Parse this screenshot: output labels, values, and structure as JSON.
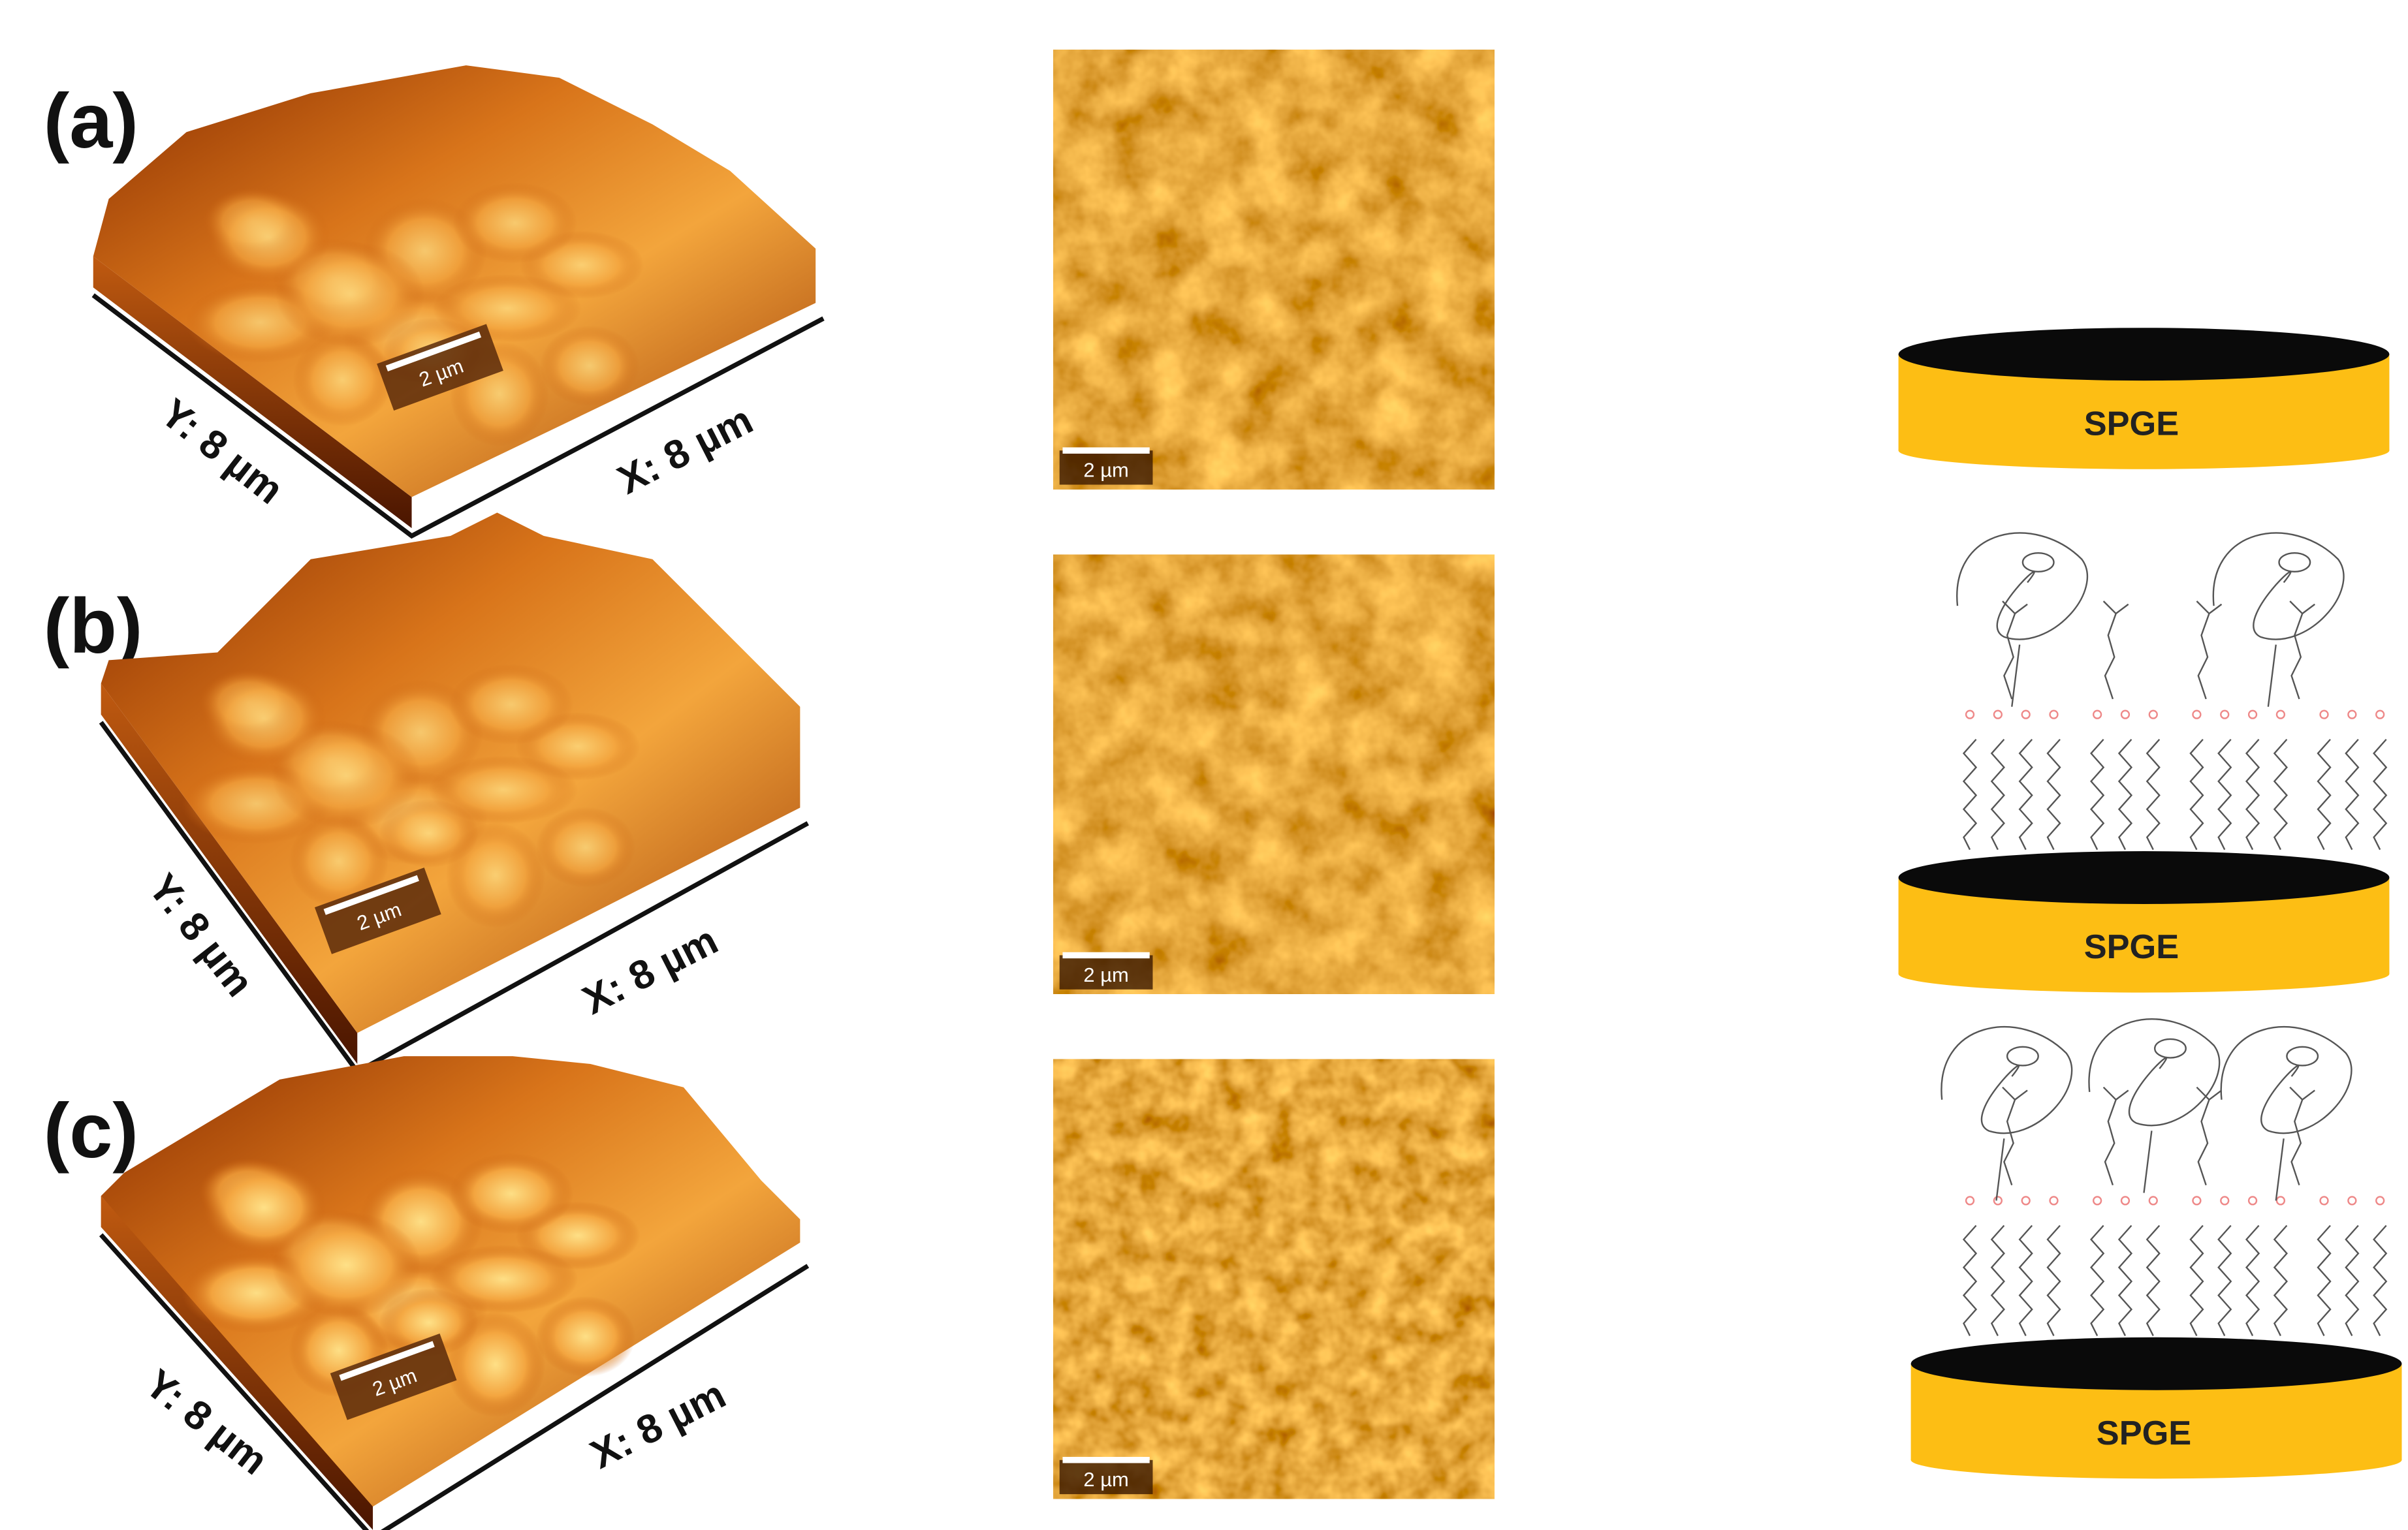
{
  "panels": [
    {
      "label": "(a)",
      "surface_3d": {
        "x_label": "X: 8 µm",
        "y_label": "Y: 8 µm",
        "scale_bar": "2 µm"
      },
      "image_2d": {
        "scale_bar": "2 µm"
      },
      "electrode": {
        "label": "SPGE"
      }
    },
    {
      "label": "(b)",
      "surface_3d": {
        "x_label": "X: 8 µm",
        "y_label": "Y: 8 µm",
        "scale_bar": "2 µm"
      },
      "image_2d": {
        "scale_bar": "2 µm"
      },
      "electrode": {
        "label": "SPGE"
      }
    },
    {
      "label": "(c)",
      "surface_3d": {
        "x_label": "X: 8 µm",
        "y_label": "Y: 8 µm",
        "scale_bar": "2 µm"
      },
      "image_2d": {
        "scale_bar": "2 µm"
      },
      "electrode": {
        "label": "SPGE"
      }
    }
  ]
}
